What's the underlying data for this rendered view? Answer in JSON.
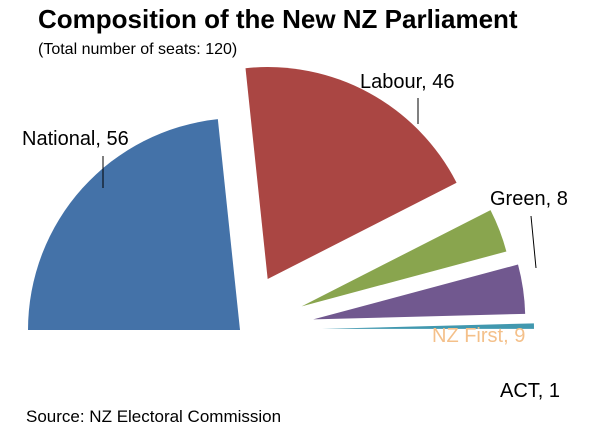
{
  "chart_data": {
    "type": "pie",
    "title": "Composition of the New NZ Parliament",
    "subtitle": "(Total number of seats: 120)",
    "source": "Source: NZ Electoral Commission",
    "total": 120,
    "layout": "semicircle, exploded slices",
    "slices": [
      {
        "name": "National",
        "value": 56,
        "label": "National, 56",
        "color": "#4472A8"
      },
      {
        "name": "Labour",
        "value": 46,
        "label": "Labour, 46",
        "color": "#AA4643"
      },
      {
        "name": "Green",
        "value": 8,
        "label": "Green, 8",
        "color": "#89A54E"
      },
      {
        "name": "NZ First",
        "value": 9,
        "label": "NZ First, 9",
        "color": "#71588F",
        "label_color": "#F4C08A"
      },
      {
        "name": "ACT",
        "value": 1,
        "label": "ACT, 1",
        "color": "#4198AF"
      }
    ]
  }
}
